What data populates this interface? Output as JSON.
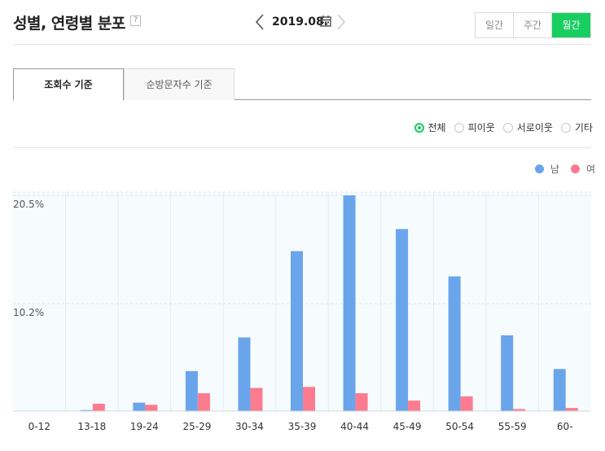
{
  "header": {
    "title": "성별, 연령별 분포",
    "help_label": "?",
    "date": "2019.08.",
    "period_tabs": [
      {
        "label": "일간",
        "active": false
      },
      {
        "label": "주간",
        "active": false
      },
      {
        "label": "월간",
        "active": true
      }
    ]
  },
  "tabs": [
    {
      "label": "조회수 기준",
      "active": true
    },
    {
      "label": "순방문자수 기준",
      "active": false
    }
  ],
  "filters": [
    {
      "label": "전체",
      "selected": true
    },
    {
      "label": "피이웃",
      "selected": false
    },
    {
      "label": "서로이웃",
      "selected": false
    },
    {
      "label": "기타",
      "selected": false
    }
  ],
  "colors": {
    "accent": "#19ce60",
    "male": "#6aa5ec",
    "female": "#fd7b8e"
  },
  "chart_data": {
    "type": "bar",
    "categories": [
      "0-12",
      "13-18",
      "19-24",
      "25-29",
      "30-34",
      "35-39",
      "40-44",
      "45-49",
      "50-54",
      "55-59",
      "60-"
    ],
    "series": [
      {
        "name": "남",
        "color": "#6aa5ec",
        "values": [
          0,
          0.1,
          0.8,
          3.8,
          7.0,
          15.2,
          20.5,
          17.3,
          12.8,
          7.2,
          4.0
        ]
      },
      {
        "name": "여",
        "color": "#fd7b8e",
        "values": [
          0,
          0.7,
          0.6,
          1.7,
          2.2,
          2.3,
          1.7,
          1.0,
          1.4,
          0.2,
          0.3
        ]
      }
    ],
    "yticks": [
      "20.5%",
      "10.2%"
    ],
    "ytick_values": [
      20.5,
      10.2
    ],
    "ylim": [
      0,
      20.5
    ],
    "legend_position": "top-right"
  }
}
